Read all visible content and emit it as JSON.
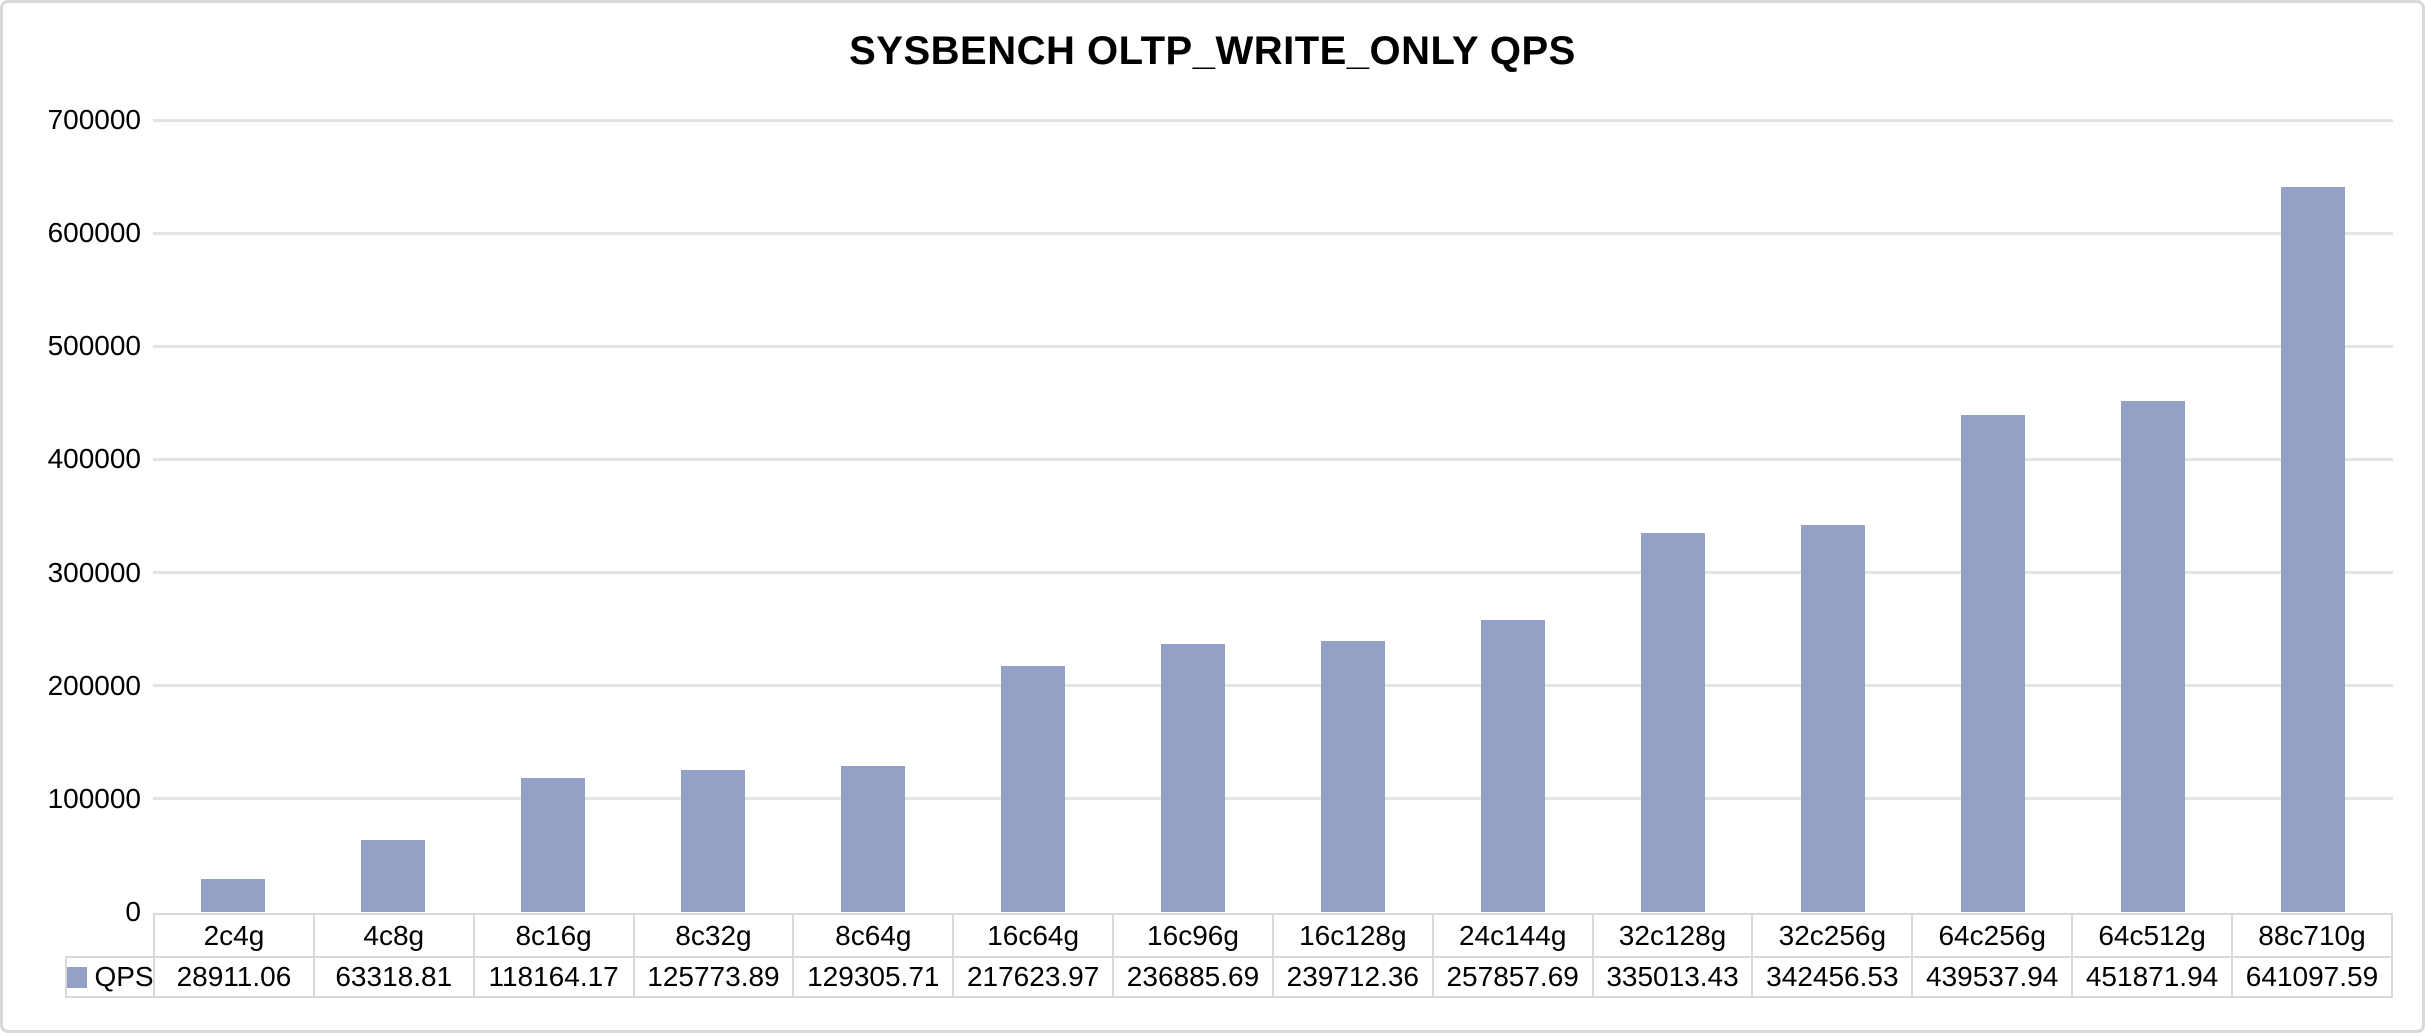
{
  "frame": {
    "background": "#ffffff",
    "border_color": "#d9d9d9"
  },
  "chart_data": {
    "type": "bar",
    "title": "SYSBENCH OLTP_WRITE_ONLY QPS",
    "categories": [
      "2c4g",
      "4c8g",
      "8c16g",
      "8c32g",
      "8c64g",
      "16c64g",
      "16c96g",
      "16c128g",
      "24c144g",
      "32c128g",
      "32c256g",
      "64c256g",
      "64c512g",
      "88c710g"
    ],
    "series": [
      {
        "name": "QPS",
        "color": "#94a0c6",
        "values": [
          28911.06,
          63318.81,
          118164.17,
          125773.89,
          129305.71,
          217623.97,
          236885.69,
          239712.36,
          257857.69,
          335013.43,
          342456.53,
          439537.94,
          451871.94,
          641097.59
        ]
      }
    ],
    "value_decimals": 2,
    "xlabel": "",
    "ylabel": "",
    "ylim": [
      0,
      700000
    ],
    "y_ticks": [
      0,
      100000,
      200000,
      300000,
      400000,
      500000,
      600000,
      700000
    ],
    "grid": "horizontal",
    "gridline_color": "#e3e3e3",
    "table_border_color": "#d9d9d9",
    "legend_position": "table-left"
  }
}
